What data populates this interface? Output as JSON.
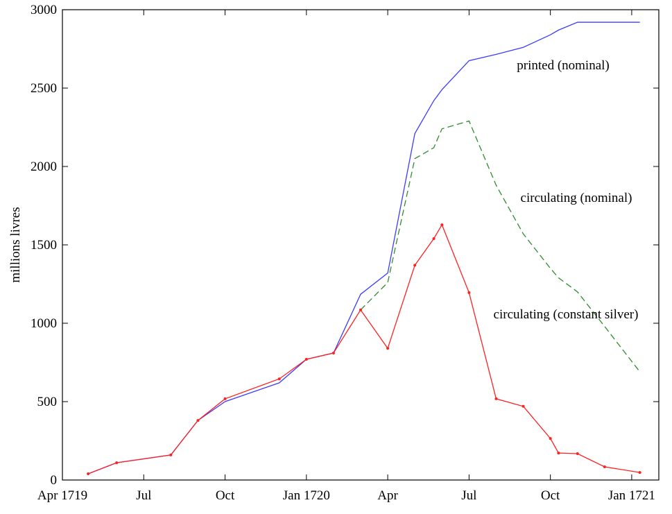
{
  "chart_data": {
    "type": "line",
    "ylabel": "millions livres",
    "x": [
      0.95,
      2,
      4,
      5,
      6,
      8,
      9,
      10,
      11,
      12,
      13,
      13.7,
      14,
      15,
      16,
      17,
      18,
      18.3,
      19,
      20,
      21.3
    ],
    "xlim": [
      0,
      22
    ],
    "xticks": [
      {
        "value": 0,
        "label": "Apr 1719"
      },
      {
        "value": 3,
        "label": "Jul"
      },
      {
        "value": 6,
        "label": "Oct"
      },
      {
        "value": 9,
        "label": "Jan 1720"
      },
      {
        "value": 12,
        "label": "Apr"
      },
      {
        "value": 15,
        "label": "Jul"
      },
      {
        "value": 18,
        "label": "Oct"
      },
      {
        "value": 21,
        "label": "Jan 1721"
      }
    ],
    "ylim": [
      0,
      3000
    ],
    "yticks": [
      0,
      500,
      1000,
      1500,
      2000,
      2500,
      3000
    ],
    "grid": false,
    "series": [
      {
        "name": "printed (nominal)",
        "color": "#3b3bff",
        "linestyle": "solid",
        "markers": false,
        "values": [
          40,
          110,
          160,
          380,
          500,
          620,
          770,
          810,
          1185,
          1320,
          2210,
          2420,
          2490,
          2675,
          2715,
          2760,
          2840,
          2870,
          2920,
          2920,
          2920
        ]
      },
      {
        "name": "circulating (nominal)",
        "color": "#2e8b2e",
        "linestyle": "dashed",
        "markers": false,
        "values": [
          null,
          null,
          null,
          null,
          null,
          null,
          null,
          null,
          1085,
          1260,
          2050,
          2120,
          2240,
          2290,
          1880,
          1570,
          1350,
          1290,
          1200,
          980,
          690
        ]
      },
      {
        "name": "circulating (constant silver)",
        "color": "#ff2020",
        "linestyle": "solid",
        "markers": true,
        "values": [
          40,
          110,
          160,
          380,
          518,
          645,
          770,
          810,
          1085,
          840,
          1370,
          1540,
          1628,
          1195,
          518,
          470,
          265,
          172,
          168,
          84,
          48
        ]
      }
    ]
  }
}
